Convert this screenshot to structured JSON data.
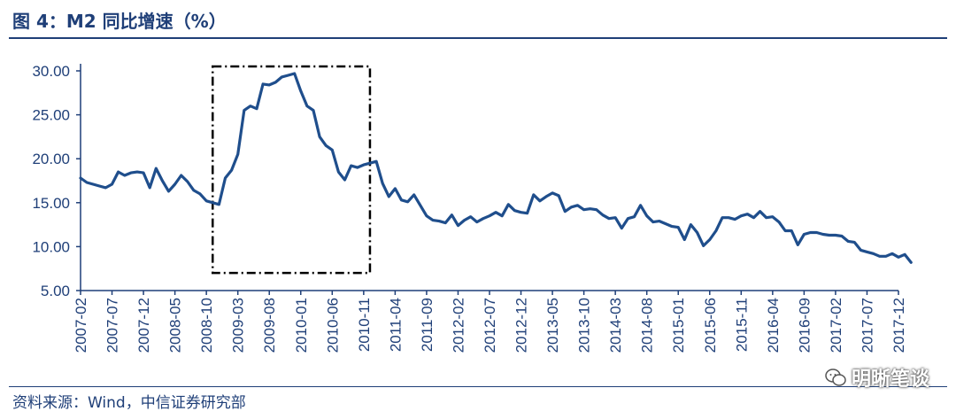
{
  "header": {
    "title": "图 4：M2 同比增速（%）"
  },
  "footer": {
    "source": "资料来源：Wind，中信证券研究部"
  },
  "watermark": {
    "text": "明晰笔谈",
    "icon": "wechat-icon"
  },
  "colors": {
    "line": "#1f4e8c",
    "axis": "#1f3f78",
    "text": "#1f3f78"
  },
  "chart_data": {
    "type": "line",
    "title": "",
    "xlabel": "",
    "ylabel": "",
    "ylim": [
      5,
      30
    ],
    "yticks": [
      "5.00",
      "10.00",
      "15.00",
      "20.00",
      "25.00",
      "30.00"
    ],
    "x_tick_labels": [
      "2007-02",
      "2007-07",
      "2007-12",
      "2008-05",
      "2008-10",
      "2009-03",
      "2009-08",
      "2010-01",
      "2010-06",
      "2010-11",
      "2011-04",
      "2011-09",
      "2012-02",
      "2012-07",
      "2012-12",
      "2013-05",
      "2013-10",
      "2014-03",
      "2014-08",
      "2015-01",
      "2015-06",
      "2015-11",
      "2016-04",
      "2016-09",
      "2017-02",
      "2017-07",
      "2017-12"
    ],
    "grid": false,
    "legend": "none",
    "highlight_box": {
      "x_from": "2008-11",
      "x_to": "2010-12",
      "y_from": 7,
      "y_to": 30.5,
      "style": "dash-dot"
    },
    "series": [
      {
        "x_start": "2007-02",
        "frequency": "monthly",
        "values": [
          17.8,
          17.3,
          17.1,
          16.9,
          16.7,
          17.1,
          18.5,
          18.1,
          18.4,
          18.5,
          18.4,
          16.7,
          18.9,
          17.5,
          16.3,
          17.1,
          18.1,
          17.4,
          16.4,
          16.0,
          15.2,
          15.0,
          14.8,
          17.8,
          18.7,
          20.5,
          25.5,
          26.0,
          25.7,
          28.5,
          28.4,
          28.7,
          29.3,
          29.5,
          29.7,
          27.7,
          26.0,
          25.5,
          22.5,
          21.5,
          21.0,
          18.5,
          17.6,
          19.2,
          19.0,
          19.3,
          19.5,
          19.7,
          17.2,
          15.7,
          16.6,
          15.3,
          15.1,
          15.9,
          14.7,
          13.5,
          13.0,
          12.9,
          12.7,
          13.6,
          12.4,
          13.0,
          13.4,
          12.8,
          13.2,
          13.5,
          13.9,
          13.5,
          14.8,
          14.1,
          13.9,
          13.8,
          15.9,
          15.2,
          15.7,
          16.1,
          15.8,
          14.0,
          14.5,
          14.7,
          14.2,
          14.3,
          14.2,
          13.6,
          13.2,
          13.3,
          12.1,
          13.2,
          13.4,
          14.7,
          13.5,
          12.8,
          12.9,
          12.6,
          12.3,
          12.2,
          10.8,
          12.5,
          11.6,
          10.1,
          10.8,
          11.8,
          13.3,
          13.3,
          13.1,
          13.5,
          13.7,
          13.3,
          14.0,
          13.3,
          13.4,
          12.8,
          11.8,
          11.8,
          10.2,
          11.4,
          11.6,
          11.6,
          11.4,
          11.3,
          11.3,
          11.2,
          10.6,
          10.5,
          9.6,
          9.4,
          9.2,
          8.9,
          8.9,
          9.2,
          8.8,
          9.1,
          8.2
        ]
      }
    ]
  }
}
